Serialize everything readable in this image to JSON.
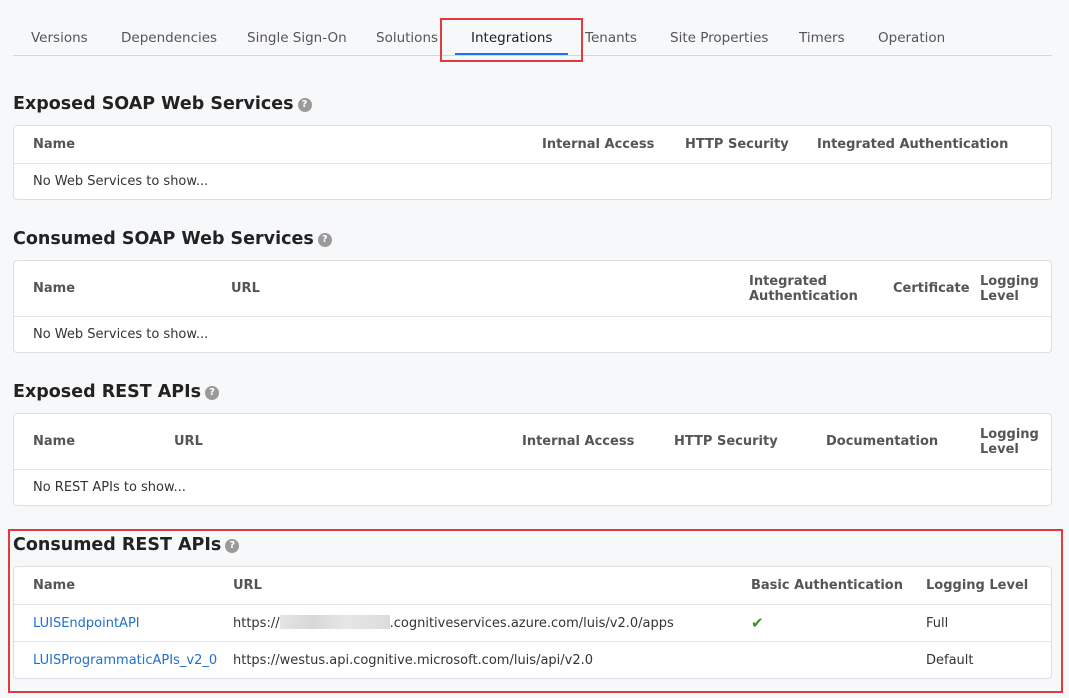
{
  "tabs": [
    "Versions",
    "Dependencies",
    "Single Sign-On",
    "Solutions",
    "Integrations",
    "Tenants",
    "Site Properties",
    "Timers",
    "Operation"
  ],
  "active_tab": "Integrations",
  "help_glyph": "?",
  "exposed_soap": {
    "title": "Exposed SOAP Web Services",
    "columns": [
      "Name",
      "Internal Access",
      "HTTP Security",
      "Integrated Authentication"
    ],
    "empty": "No Web Services to show..."
  },
  "consumed_soap": {
    "title": "Consumed SOAP Web Services",
    "columns": [
      "Name",
      "URL",
      "Integrated Authentication",
      "Certificate",
      "Logging Level"
    ],
    "empty": "No Web Services to show..."
  },
  "exposed_rest": {
    "title": "Exposed REST APIs",
    "columns": [
      "Name",
      "URL",
      "Internal Access",
      "HTTP Security",
      "Documentation",
      "Logging Level"
    ],
    "empty": "No REST APIs to show..."
  },
  "consumed_rest": {
    "title": "Consumed REST APIs",
    "columns": [
      "Name",
      "URL",
      "Basic Authentication",
      "Logging Level"
    ],
    "rows": [
      {
        "name": "LUISEndpointAPI",
        "url_prefix": "https://",
        "url_suffix": ".cognitiveservices.azure.com/luis/v2.0/apps",
        "basic_auth": true,
        "check": "✔",
        "logging": "Full"
      },
      {
        "name": "LUISProgrammaticAPIs_v2_0",
        "url": "https://westus.api.cognitive.microsoft.com/luis/api/v2.0",
        "basic_auth": false,
        "logging": "Default"
      }
    ]
  },
  "colors": {
    "accent": "#1a73e8",
    "highlight": "#e0393e",
    "link": "#1f6fd0",
    "check": "#3f8f25"
  }
}
